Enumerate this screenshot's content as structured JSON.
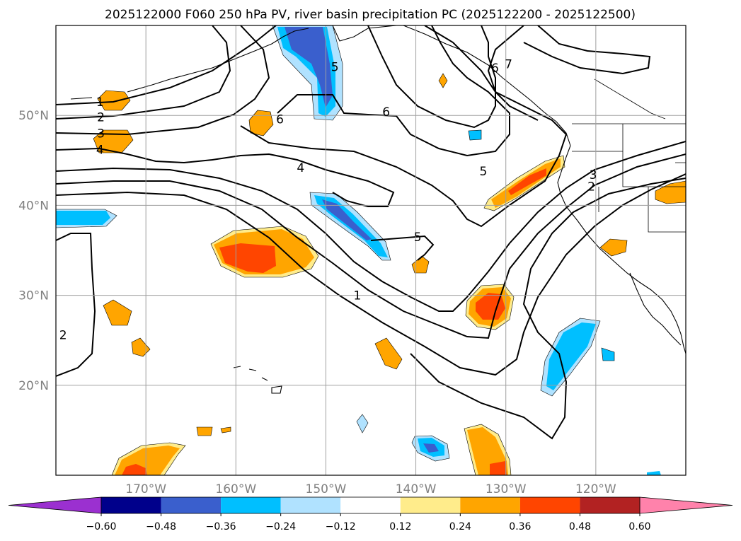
{
  "title": "2025122000 F060 250 hPa PV, river basin precipitation PC (2025122200 - 2025122500)",
  "map": {
    "extent": {
      "lon_min": -180,
      "lon_max": -110,
      "lat_min": 10,
      "lat_max": 60
    },
    "grid_lats": [
      20,
      30,
      40,
      50
    ],
    "grid_lons": [
      -170,
      -160,
      -150,
      -140,
      -130,
      -120
    ],
    "lat_labels": [
      "20°N",
      "30°N",
      "40°N",
      "50°N"
    ],
    "lon_labels": [
      "170°W",
      "160°W",
      "150°W",
      "140°W",
      "130°W",
      "120°W"
    ]
  },
  "contour_labels": [
    {
      "text": "1",
      "lon": -175.1,
      "lat": 51.5
    },
    {
      "text": "2",
      "lon": -175.0,
      "lat": 49.8
    },
    {
      "text": "3",
      "lon": -175.0,
      "lat": 48.0
    },
    {
      "text": "4",
      "lon": -175.1,
      "lat": 46.2
    },
    {
      "text": "6",
      "lon": -155.1,
      "lat": 49.6
    },
    {
      "text": "5",
      "lon": -149.0,
      "lat": 55.4
    },
    {
      "text": "6",
      "lon": -143.3,
      "lat": 50.4
    },
    {
      "text": "6",
      "lon": -131.2,
      "lat": 55.3
    },
    {
      "text": "7",
      "lon": -129.7,
      "lat": 55.7
    },
    {
      "text": "4",
      "lon": -152.8,
      "lat": 44.2
    },
    {
      "text": "5",
      "lon": -132.5,
      "lat": 43.8
    },
    {
      "text": "3",
      "lon": -120.3,
      "lat": 43.4
    },
    {
      "text": "2",
      "lon": -120.5,
      "lat": 42.1
    },
    {
      "text": "5",
      "lon": -139.8,
      "lat": 36.5
    },
    {
      "text": "1",
      "lon": -146.5,
      "lat": 30.0
    },
    {
      "text": "2",
      "lon": -179.2,
      "lat": 25.6
    }
  ],
  "colorbar": {
    "levels": [
      -0.72,
      -0.6,
      -0.48,
      -0.36,
      -0.24,
      -0.12,
      0.12,
      0.24,
      0.36,
      0.48,
      0.6,
      0.72
    ],
    "tick_labels": [
      "−0.60",
      "−0.48",
      "−0.36",
      "−0.24",
      "−0.12",
      "0.12",
      "0.24",
      "0.36",
      "0.48",
      "0.60"
    ],
    "colors": [
      "#9b30d0",
      "#00008b",
      "#3a5fcd",
      "#00bfff",
      "#b0e2ff",
      "#ffffff",
      "#ffec8b",
      "#ffa500",
      "#ff4500",
      "#b22222",
      "#ff82ab"
    ],
    "under_color": "#9b30d0",
    "over_color": "#ff82ab"
  }
}
